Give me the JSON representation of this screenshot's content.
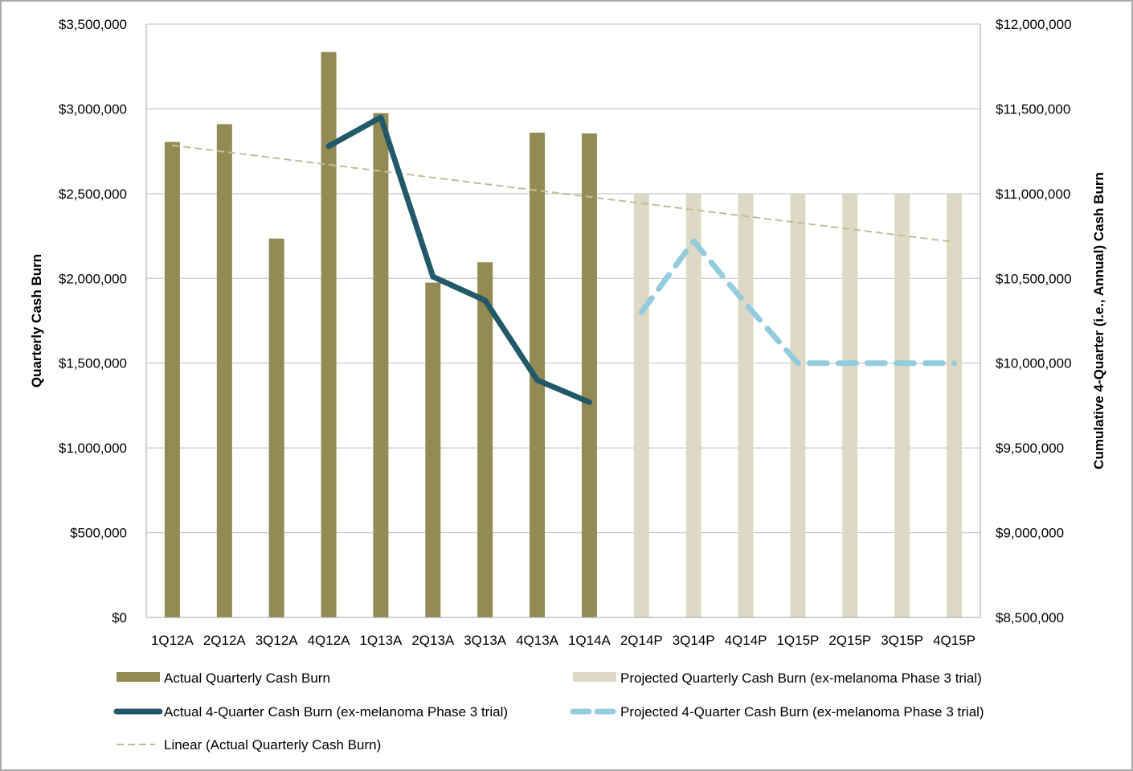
{
  "chart_data": {
    "type": "bar",
    "categories": [
      "1Q12A",
      "2Q12A",
      "3Q12A",
      "4Q12A",
      "1Q13A",
      "2Q13A",
      "3Q13A",
      "4Q13A",
      "1Q14A",
      "2Q14P",
      "3Q14P",
      "4Q14P",
      "1Q15P",
      "2Q15P",
      "3Q15P",
      "4Q15P"
    ],
    "y_left": {
      "label": "Quarterly Cash Burn",
      "range": [
        0,
        3500000
      ],
      "ticks": [
        "$0",
        "$500,000",
        "$1,000,000",
        "$1,500,000",
        "$2,000,000",
        "$2,500,000",
        "$3,000,000",
        "$3,500,000"
      ]
    },
    "y_right": {
      "label": "Cumulative 4-Quarter (i.e., Annual) Cash Burn",
      "range": [
        8500000,
        12000000
      ],
      "ticks": [
        "$8,500,000",
        "$9,000,000",
        "$9,500,000",
        "$10,000,000",
        "$10,500,000",
        "$11,000,000",
        "$11,500,000",
        "$12,000,000"
      ]
    },
    "grid": "horizontal",
    "legend_position": "bottom",
    "series": [
      {
        "name": "Actual Quarterly Cash Burn",
        "type": "bar",
        "axis": "left",
        "color": "#948a54",
        "values": [
          2805000,
          2910000,
          2235000,
          3335000,
          2975000,
          1975000,
          2095000,
          2860000,
          2855000,
          null,
          null,
          null,
          null,
          null,
          null,
          null
        ]
      },
      {
        "name": "Projected Quarterly Cash Burn (ex-melanoma Phase 3 trial)",
        "type": "bar",
        "axis": "left",
        "color": "#ddd9c4",
        "values": [
          null,
          null,
          null,
          null,
          null,
          null,
          null,
          null,
          null,
          2500000,
          2500000,
          2500000,
          2500000,
          2500000,
          2500000,
          2500000
        ]
      },
      {
        "name": "Actual 4-Quarter Cash Burn (ex-melanoma Phase 3 trial)",
        "type": "line",
        "axis": "right",
        "color": "#215968",
        "values": [
          null,
          null,
          null,
          11280000,
          11450000,
          10510000,
          10370000,
          9900000,
          9770000,
          null,
          null,
          null,
          null,
          null,
          null,
          null
        ]
      },
      {
        "name": "Projected 4-Quarter Cash Burn (ex-melanoma Phase 3 trial)",
        "type": "line",
        "dashed": true,
        "axis": "right",
        "color": "#93cddd",
        "values": [
          null,
          null,
          null,
          null,
          null,
          null,
          null,
          null,
          null,
          10300000,
          10720000,
          10350000,
          10000000,
          10000000,
          10000000,
          10000000
        ]
      },
      {
        "name": "Linear (Actual Quarterly Cash Burn)",
        "type": "trendline",
        "axis": "left",
        "color": "#c4bd97",
        "values": [
          2785000,
          2747000,
          2709000,
          2671000,
          2633000,
          2595000,
          2557000,
          2519000,
          2481000,
          2443000,
          2405000,
          2367000,
          2329000,
          2291000,
          2253000,
          2215000
        ]
      }
    ]
  },
  "legend": {
    "items": [
      {
        "label": "Actual Quarterly Cash Burn",
        "kind": "bar",
        "color": "#948a54"
      },
      {
        "label": "Projected Quarterly Cash Burn (ex-melanoma Phase 3 trial)",
        "kind": "bar",
        "color": "#ddd9c4"
      },
      {
        "label": "Actual 4-Quarter Cash Burn (ex-melanoma Phase 3 trial)",
        "kind": "line",
        "color": "#215968"
      },
      {
        "label": "Projected 4-Quarter Cash Burn (ex-melanoma Phase 3 trial)",
        "kind": "dashed",
        "color": "#93cddd"
      },
      {
        "label": "Linear (Actual Quarterly Cash Burn)",
        "kind": "trend",
        "color": "#c4bd97"
      }
    ]
  }
}
